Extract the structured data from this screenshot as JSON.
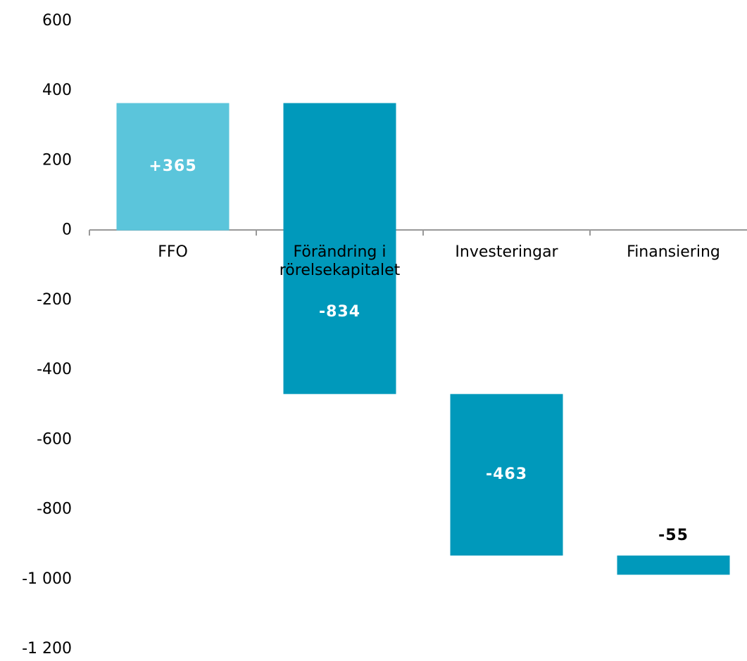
{
  "chart_data": {
    "type": "waterfall",
    "categories": [
      "FFO",
      "Förändring i rörelsekapitalet",
      "Investeringar",
      "Finansiering"
    ],
    "values": [
      365,
      -834,
      -463,
      -55
    ],
    "value_labels": [
      "+365",
      "-834",
      "-463",
      "-55"
    ],
    "colors": [
      "#5bc5db",
      "#0099bb",
      "#0099bb",
      "#0099bb"
    ],
    "ylim": [
      -1200,
      600
    ],
    "yticks": [
      600,
      400,
      200,
      0,
      -200,
      -400,
      -600,
      -800,
      {
        "value": -1000,
        "label": "-1 000"
      },
      {
        "value": -1200,
        "label": "-1 200"
      }
    ]
  }
}
